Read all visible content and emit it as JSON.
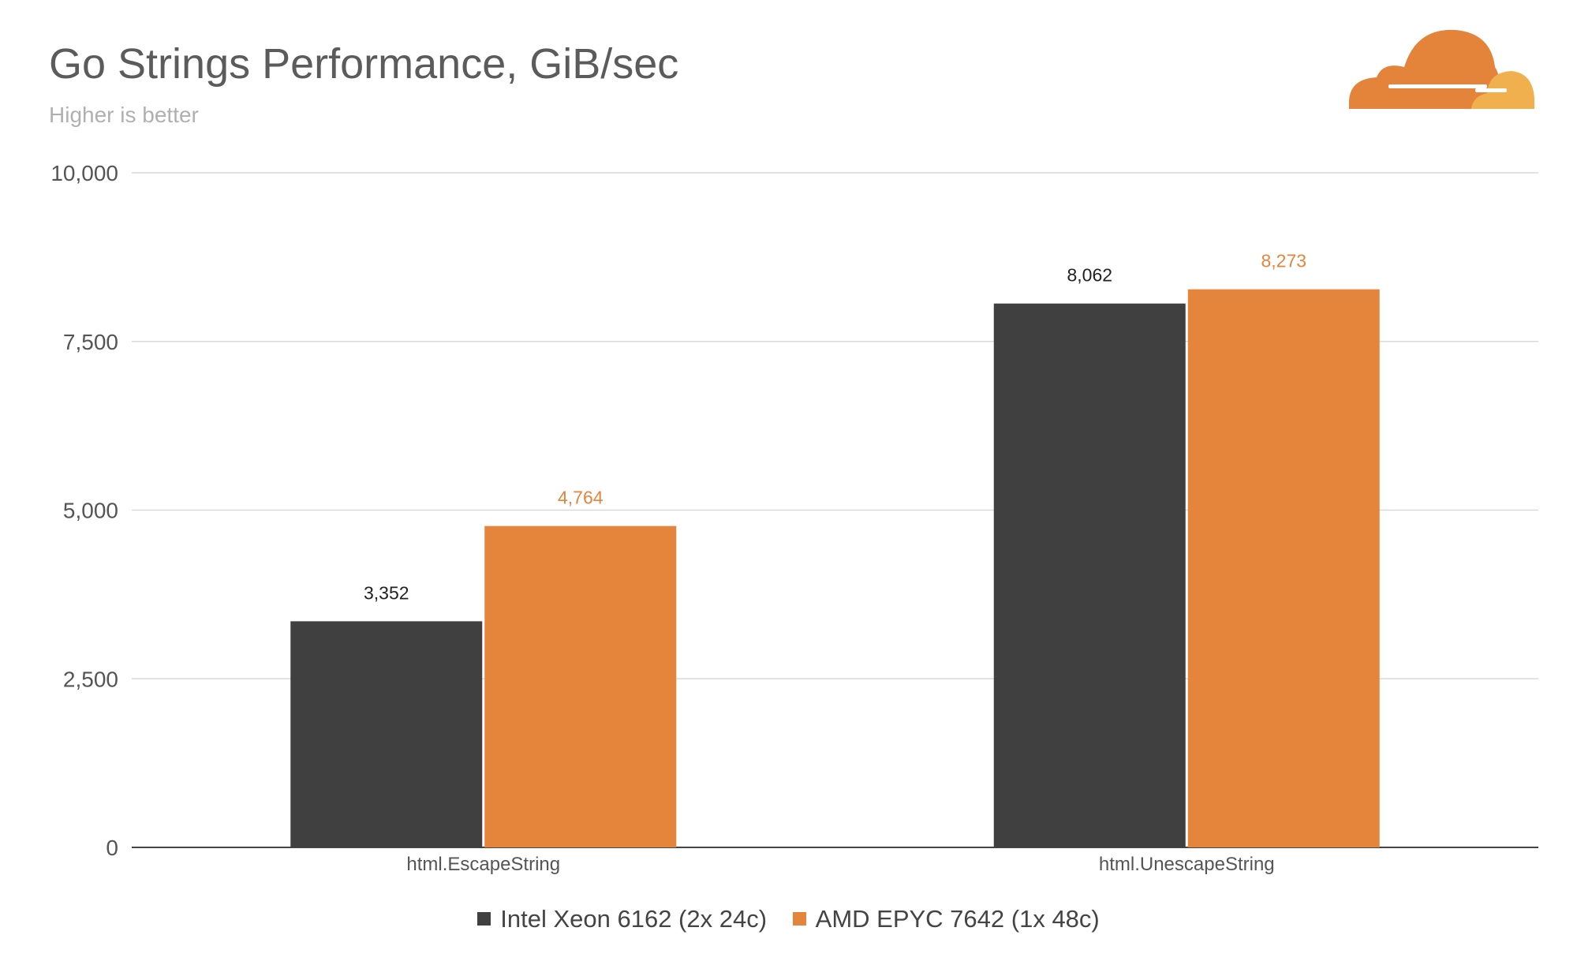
{
  "header": {
    "title": "Go Strings Performance, GiB/sec",
    "subtitle": "Higher is better"
  },
  "logo": {
    "icon": "cloudflare-cloud-icon",
    "colors": [
      "#e3843a",
      "#f0b04e"
    ]
  },
  "chart_data": {
    "type": "bar",
    "title": "Go Strings Performance, GiB/sec",
    "subtitle": "Higher is better",
    "categories": [
      "html.EscapeString",
      "html.UnescapeString"
    ],
    "series": [
      {
        "name": "Intel Xeon 6162 (2x 24c)",
        "values": [
          3352,
          8062
        ],
        "labels": [
          "3,352",
          "8,062"
        ],
        "color": "#404040"
      },
      {
        "name": "AMD EPYC 7642 (1x 48c)",
        "values": [
          4764,
          8273
        ],
        "labels": [
          "4,764",
          "8,273"
        ],
        "color": "#e4853b"
      }
    ],
    "ylim": [
      0,
      10000
    ],
    "yticks": [
      0,
      2500,
      5000,
      7500,
      10000
    ],
    "ytick_labels": [
      "0",
      "2,500",
      "5,000",
      "7,500",
      "10,000"
    ],
    "grid": true,
    "legend_position": "bottom"
  }
}
